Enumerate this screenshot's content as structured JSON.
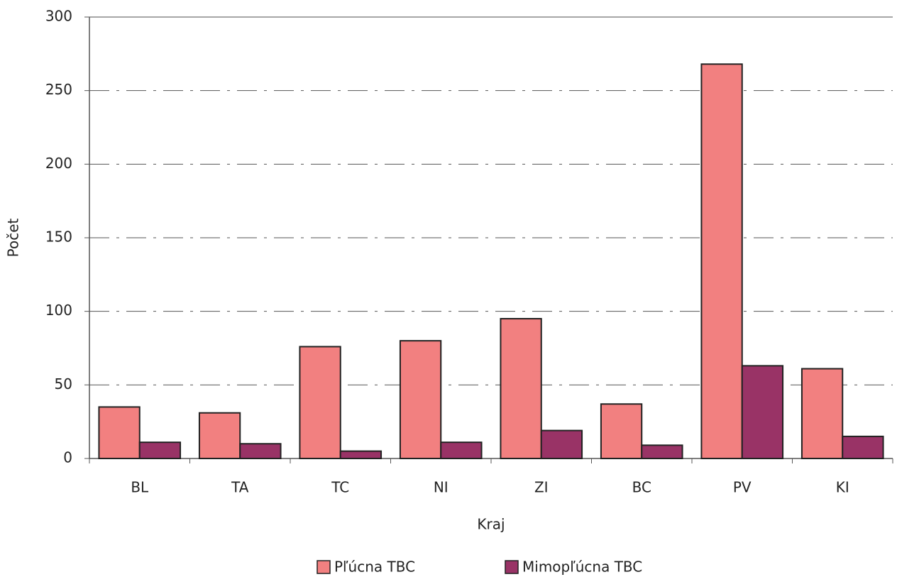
{
  "chart_data": {
    "type": "bar",
    "x_label": "Kraj",
    "y_label": "Počet",
    "categories": [
      "BL",
      "TA",
      "TC",
      "NI",
      "ZI",
      "BC",
      "PV",
      "KI"
    ],
    "series": [
      {
        "name": "Pľúcna TBC",
        "color": "#f28080",
        "values": [
          35,
          31,
          76,
          80,
          95,
          37,
          268,
          61
        ]
      },
      {
        "name": "Mimopľúcna TBC",
        "color": "#993366",
        "values": [
          11,
          10,
          5,
          11,
          19,
          9,
          63,
          15
        ]
      }
    ],
    "ylim": [
      0,
      300
    ],
    "yticks": [
      0,
      50,
      100,
      150,
      200,
      250,
      300
    ],
    "grid": true,
    "legend": "bottom"
  }
}
